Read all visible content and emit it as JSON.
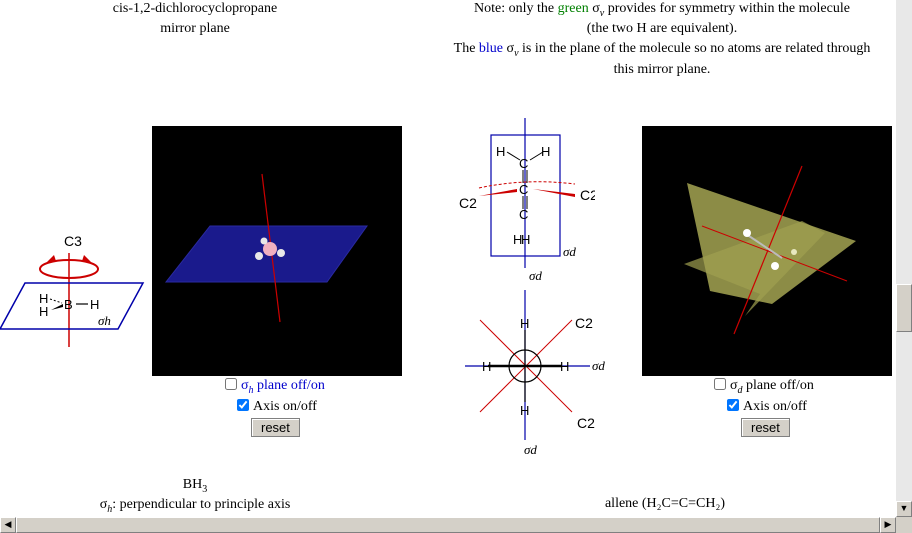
{
  "top_left": {
    "line1": "cis-1,2-dichlorocyclopropane",
    "line2": "mirror plane"
  },
  "note": {
    "line1_pre": "Note: only the ",
    "line1_green": "green",
    "line1_sigma": "σ",
    "line1_sub": "v",
    "line1_post": " provides for symmetry within the molecule",
    "line2": "(the two H are equivalent).",
    "line3_pre": "The ",
    "line3_blue": "blue",
    "line3_sigma": " σ",
    "line3_sub": "v",
    "line3_post": " is in the plane of the molecule so no atoms are related through",
    "line4": "this mirror plane."
  },
  "bh3": {
    "axis_label": "C3",
    "atom_h1": "H",
    "atom_h2": "H",
    "atom_b": "B",
    "atom_h3": "H",
    "plane_label": "σh",
    "plane_control_label": "plane off/on",
    "plane_control_sigma": "σ",
    "plane_control_sub": "h",
    "axis_control_label": "Axis on/off",
    "reset_label": "reset",
    "caption_name": "BH",
    "caption_sub": "3",
    "caption_desc_sigma": "σ",
    "caption_desc_sub": "h",
    "caption_desc_text": ": perpendicular to principle axis"
  },
  "allene": {
    "c2_left": "C2",
    "c2_right": "C2",
    "c2_lower1": "C2",
    "c2_lower2": "C2",
    "sigma_d_1": "σd",
    "sigma_d_2": "σd",
    "sigma_d_3": "σd",
    "sigma_d_4": "σd",
    "atom_h": "H",
    "atom_c": "C",
    "plane_control_sigma": "σ",
    "plane_control_sub": "d",
    "plane_control_label": " plane off/on",
    "axis_control_label": "Axis on/off",
    "reset_label": "reset",
    "caption": "allene (H₂C=C=CH₂)"
  },
  "colors": {
    "plane_blue": "#1a1a8c",
    "plane_yellow": "#c8c864",
    "axis_red": "#cc0000",
    "diagram_blue": "#0000aa"
  }
}
